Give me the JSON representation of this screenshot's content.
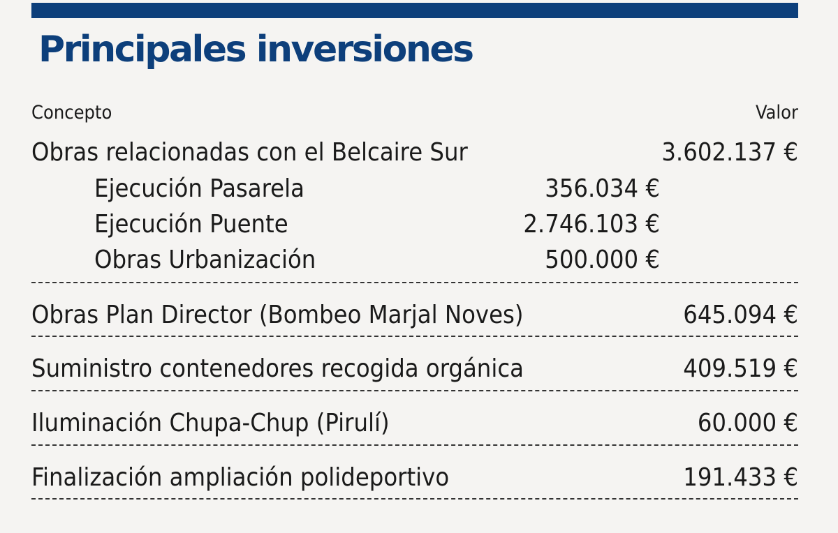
{
  "title": "Principales inversiones",
  "header": {
    "concept": "Concepto",
    "value": "Valor"
  },
  "rows": [
    {
      "label": "Obras relacionadas con el Belcaire Sur",
      "value": "3.602.137 €",
      "subitems": [
        {
          "label": "Ejecución Pasarela",
          "value": "356.034 €"
        },
        {
          "label": "Ejecución Puente",
          "value": "2.746.103 €"
        },
        {
          "label": "Obras Urbanización",
          "value": "500.000 €"
        }
      ]
    },
    {
      "label": "Obras Plan Director (Bombeo Marjal Noves)",
      "value": "645.094 €"
    },
    {
      "label": "Suministro contenedores recogida orgánica",
      "value": "409.519 €"
    },
    {
      "label": "Iluminación Chupa-Chup (Pirulí)",
      "value": "60.000 €"
    },
    {
      "label": "Finalización ampliación polideportivo",
      "value": "191.433 €"
    }
  ],
  "colors": {
    "accent": "#0d3f7b",
    "background": "#f5f4f2",
    "text": "#1a1a1a"
  }
}
